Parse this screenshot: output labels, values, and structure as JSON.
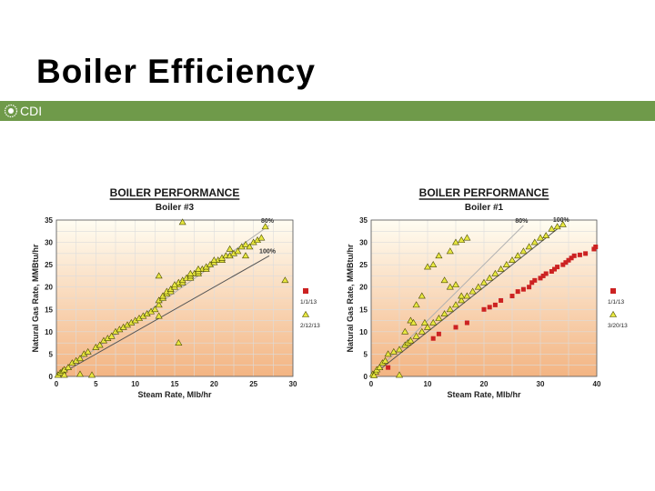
{
  "slide": {
    "title": "Boiler Efficiency",
    "brand": "CDI"
  },
  "chart_data": [
    {
      "type": "scatter",
      "title": "BOILER PERFORMANCE",
      "subtitle": "Boiler #3",
      "xlabel": "Steam Rate, Mlb/hr",
      "ylabel": "Natural Gas Rate, MMBtu/hr",
      "xlim": [
        0,
        30
      ],
      "ylim": [
        0,
        35
      ],
      "xticks": [
        0,
        5,
        10,
        15,
        20,
        25,
        30
      ],
      "yticks": [
        0,
        5,
        10,
        15,
        20,
        25,
        30,
        35
      ],
      "grid": true,
      "legend": "right",
      "lines": [
        {
          "label": "80%",
          "points": [
            [
              0,
              0
            ],
            [
              27,
              33.8
            ]
          ],
          "color": "#b0b0b0"
        },
        {
          "label": "100%",
          "points": [
            [
              0,
              0
            ],
            [
              27,
              27
            ]
          ],
          "color": "#555555"
        }
      ],
      "series": [
        {
          "name": "1/1/13",
          "marker": "square",
          "color": "#cc2222",
          "points": []
        },
        {
          "name": "2/12/13",
          "marker": "triangle",
          "color": "#e8e840",
          "points": [
            [
              0.2,
              0.3
            ],
            [
              0.5,
              0.8
            ],
            [
              0.8,
              1.2
            ],
            [
              1,
              1.5
            ],
            [
              1.5,
              2
            ],
            [
              2,
              3
            ],
            [
              2.5,
              3.5
            ],
            [
              3,
              4
            ],
            [
              3.5,
              5
            ],
            [
              4,
              5.5
            ],
            [
              5,
              6.5
            ],
            [
              5.5,
              7
            ],
            [
              6,
              8
            ],
            [
              6.5,
              8.5
            ],
            [
              7,
              9
            ],
            [
              7.5,
              10
            ],
            [
              8,
              10.5
            ],
            [
              8.5,
              11
            ],
            [
              9,
              11.5
            ],
            [
              9.5,
              12
            ],
            [
              10,
              12.5
            ],
            [
              10.5,
              13
            ],
            [
              11,
              13.5
            ],
            [
              11.5,
              14
            ],
            [
              12,
              14.5
            ],
            [
              12.5,
              15
            ],
            [
              13,
              16
            ],
            [
              13,
              17
            ],
            [
              13.5,
              17.5
            ],
            [
              13.5,
              18
            ],
            [
              14,
              18.5
            ],
            [
              14,
              19
            ],
            [
              14.5,
              19
            ],
            [
              14.5,
              19.5
            ],
            [
              15,
              20
            ],
            [
              15.5,
              20.5
            ],
            [
              15.5,
              21
            ],
            [
              16,
              21
            ],
            [
              16,
              21.5
            ],
            [
              16.5,
              22
            ],
            [
              17,
              22
            ],
            [
              17,
              22.5
            ],
            [
              17.5,
              23
            ],
            [
              18,
              23
            ],
            [
              18,
              23.5
            ],
            [
              18.5,
              24
            ],
            [
              19,
              24
            ],
            [
              19,
              24.5
            ],
            [
              19.5,
              25
            ],
            [
              20,
              25.5
            ],
            [
              20.5,
              26
            ],
            [
              21,
              26
            ],
            [
              21,
              26.5
            ],
            [
              21.5,
              27
            ],
            [
              22,
              27
            ],
            [
              22.5,
              27.5
            ],
            [
              23,
              28
            ],
            [
              23.5,
              29
            ],
            [
              24,
              29.5
            ],
            [
              24.5,
              29
            ],
            [
              25,
              30
            ],
            [
              25.5,
              30.5
            ],
            [
              26,
              31
            ],
            [
              26.5,
              33.5
            ],
            [
              16,
              34.5
            ],
            [
              13,
              22.5
            ],
            [
              13,
              13.5
            ],
            [
              15.5,
              7.5
            ],
            [
              4.5,
              0.3
            ],
            [
              29,
              21.5
            ],
            [
              3,
              0.5
            ],
            [
              1,
              0.3
            ],
            [
              24,
              27
            ],
            [
              22,
              28.5
            ],
            [
              20,
              26
            ],
            [
              18,
              24
            ],
            [
              17,
              23
            ],
            [
              15,
              20.5
            ]
          ]
        }
      ]
    },
    {
      "type": "scatter",
      "title": "BOILER PERFORMANCE",
      "subtitle": "Boiler #1",
      "xlabel": "Steam Rate, Mlb/hr",
      "ylabel": "Natural Gas Rate, MMBtu/hr",
      "xlim": [
        0,
        40
      ],
      "ylim": [
        0,
        35
      ],
      "xticks": [
        0,
        10,
        20,
        30,
        40
      ],
      "yticks": [
        0,
        5,
        10,
        15,
        20,
        25,
        30,
        35
      ],
      "grid": true,
      "legend": "right",
      "lines": [
        {
          "label": "80%",
          "points": [
            [
              0,
              0
            ],
            [
              27,
              33.8
            ]
          ],
          "color": "#b0b0b0"
        },
        {
          "label": "100%",
          "points": [
            [
              0,
              0
            ],
            [
              34,
              34
            ]
          ],
          "color": "#555555"
        }
      ],
      "series": [
        {
          "name": "1/1/13",
          "marker": "square",
          "color": "#cc2222",
          "points": [
            [
              3,
              2
            ],
            [
              11,
              8.5
            ],
            [
              12,
              9.5
            ],
            [
              15,
              11
            ],
            [
              17,
              12
            ],
            [
              20,
              15
            ],
            [
              21,
              15.5
            ],
            [
              22,
              16
            ],
            [
              23,
              17
            ],
            [
              25,
              18
            ],
            [
              26,
              19
            ],
            [
              27,
              19.5
            ],
            [
              28,
              20
            ],
            [
              28.5,
              21
            ],
            [
              29,
              21.5
            ],
            [
              30,
              22
            ],
            [
              30.5,
              22.5
            ],
            [
              31,
              23
            ],
            [
              32,
              23.5
            ],
            [
              32.5,
              24
            ],
            [
              33,
              24.5
            ],
            [
              34,
              25
            ],
            [
              34.5,
              25.5
            ],
            [
              35,
              26
            ],
            [
              35.5,
              26.5
            ],
            [
              36,
              27
            ],
            [
              37,
              27.2
            ],
            [
              38,
              27.5
            ],
            [
              39.5,
              28.5
            ],
            [
              39.8,
              29
            ]
          ]
        },
        {
          "name": "3/20/13",
          "marker": "triangle",
          "color": "#e8e840",
          "points": [
            [
              0.3,
              0.5
            ],
            [
              0.8,
              1
            ],
            [
              1,
              1.5
            ],
            [
              1.5,
              2
            ],
            [
              2,
              3
            ],
            [
              2.5,
              3.5
            ],
            [
              3,
              5
            ],
            [
              4,
              5.5
            ],
            [
              5,
              6
            ],
            [
              6,
              7
            ],
            [
              6.5,
              7.5
            ],
            [
              7,
              8
            ],
            [
              8,
              9
            ],
            [
              9,
              10
            ],
            [
              10,
              11
            ],
            [
              11,
              12
            ],
            [
              12,
              13
            ],
            [
              13,
              14
            ],
            [
              14,
              15
            ],
            [
              15,
              16
            ],
            [
              16,
              17
            ],
            [
              17,
              18
            ],
            [
              18,
              19
            ],
            [
              19,
              20
            ],
            [
              20,
              21
            ],
            [
              21,
              22
            ],
            [
              22,
              23
            ],
            [
              23,
              24
            ],
            [
              24,
              25
            ],
            [
              25,
              26
            ],
            [
              26,
              27
            ],
            [
              27,
              28
            ],
            [
              28,
              29
            ],
            [
              29,
              30
            ],
            [
              30,
              31
            ],
            [
              31,
              31.5
            ],
            [
              32,
              33
            ],
            [
              33,
              33.5
            ],
            [
              34,
              34
            ],
            [
              7,
              12.5
            ],
            [
              7.5,
              12
            ],
            [
              8,
              16
            ],
            [
              9,
              18
            ],
            [
              10,
              24.5
            ],
            [
              11,
              25
            ],
            [
              12,
              27
            ],
            [
              14,
              28
            ],
            [
              15,
              30
            ],
            [
              16,
              30.5
            ],
            [
              17,
              31
            ],
            [
              13,
              21.5
            ],
            [
              14,
              20
            ],
            [
              15,
              20.5
            ],
            [
              16,
              18
            ],
            [
              5,
              0.3
            ],
            [
              9.5,
              12
            ],
            [
              6,
              10
            ],
            [
              0.5,
              0.2
            ]
          ]
        }
      ]
    }
  ]
}
